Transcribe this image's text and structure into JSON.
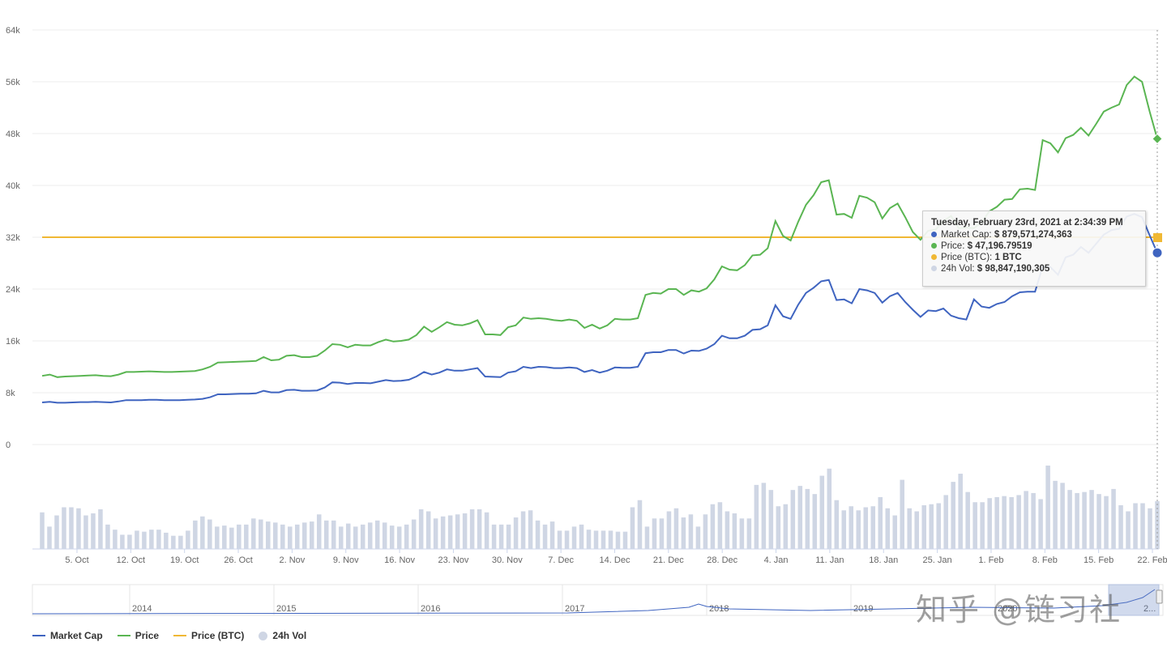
{
  "colors": {
    "market_cap": "#3f64c0",
    "price": "#5ab552",
    "price_btc": "#f0b834",
    "volume": "#cfd6e4",
    "grid": "#ececec"
  },
  "chart_data": {
    "type": "line",
    "title": "",
    "xlabel": "",
    "ylabel": "",
    "ylim": [
      0,
      64000
    ],
    "y_ticks": [
      "0",
      "8k",
      "16k",
      "24k",
      "32k",
      "40k",
      "48k",
      "56k",
      "64k"
    ],
    "x_ticks": [
      "5. Oct",
      "12. Oct",
      "19. Oct",
      "26. Oct",
      "2. Nov",
      "9. Nov",
      "16. Nov",
      "23. Nov",
      "30. Nov",
      "7. Dec",
      "14. Dec",
      "21. Dec",
      "28. Dec",
      "4. Jan",
      "11. Jan",
      "18. Jan",
      "25. Jan",
      "1. Feb",
      "8. Feb",
      "15. Feb",
      "22. Feb"
    ],
    "x_range_days": [
      0,
      141
    ],
    "series": [
      {
        "name": "Price",
        "values": [
          10600,
          10800,
          10400,
          10500,
          10550,
          10600,
          10650,
          10700,
          10600,
          10550,
          10800,
          11200,
          11200,
          11250,
          11300,
          11250,
          11200,
          11200,
          11250,
          11300,
          11350,
          11600,
          12000,
          12650,
          12700,
          12750,
          12800,
          12850,
          12900,
          13500,
          13000,
          13100,
          13700,
          13800,
          13500,
          13500,
          13700,
          14500,
          15500,
          15400,
          15000,
          15400,
          15300,
          15300,
          15800,
          16200,
          15900,
          16000,
          16200,
          16900,
          18200,
          17400,
          18100,
          18900,
          18500,
          18400,
          18700,
          19200,
          17000,
          17000,
          16900,
          18100,
          18400,
          19600,
          19400,
          19500,
          19400,
          19200,
          19100,
          19300,
          19100,
          18000,
          18500,
          17900,
          18400,
          19400,
          19300,
          19300,
          19500,
          23100,
          23400,
          23300,
          24000,
          24000,
          23100,
          23800,
          23600,
          24100,
          25500,
          27500,
          27000,
          26900,
          27700,
          29200,
          29300,
          30300,
          34500,
          32200,
          31500,
          34400,
          37000,
          38500,
          40500,
          40800,
          35500,
          35600,
          35000,
          38400,
          38100,
          37400,
          34900,
          36500,
          37200,
          35100,
          32800,
          31600,
          33000,
          33200,
          34500,
          35300,
          33400,
          33500,
          33400,
          34300,
          36000,
          36700,
          37800,
          37900,
          39400,
          39500,
          39300,
          47000,
          46500,
          45100,
          47300,
          47800,
          48900,
          47700,
          49500,
          51400,
          52000,
          52500,
          55500,
          56800,
          56000,
          51400,
          47196
        ]
      },
      {
        "name": "Market Cap",
        "values": [
          6500,
          6600,
          6450,
          6450,
          6500,
          6550,
          6550,
          6600,
          6550,
          6500,
          6650,
          6850,
          6850,
          6850,
          6900,
          6900,
          6850,
          6850,
          6850,
          6900,
          6950,
          7050,
          7300,
          7750,
          7750,
          7800,
          7850,
          7850,
          7900,
          8300,
          8050,
          8050,
          8400,
          8450,
          8300,
          8300,
          8350,
          8800,
          9600,
          9550,
          9350,
          9500,
          9500,
          9450,
          9700,
          9950,
          9800,
          9850,
          10000,
          10500,
          11200,
          10800,
          11100,
          11600,
          11400,
          11400,
          11600,
          11800,
          10500,
          10450,
          10400,
          11100,
          11300,
          12000,
          11800,
          12000,
          11950,
          11800,
          11800,
          11900,
          11800,
          11200,
          11500,
          11100,
          11400,
          11900,
          11850,
          11850,
          12000,
          14100,
          14250,
          14250,
          14600,
          14600,
          14050,
          14500,
          14450,
          14800,
          15500,
          16800,
          16400,
          16400,
          16800,
          17700,
          17800,
          18400,
          21500,
          19800,
          19400,
          21600,
          23400,
          24200,
          25200,
          25400,
          22300,
          22400,
          21800,
          24000,
          23800,
          23400,
          21900,
          22900,
          23400,
          22000,
          20800,
          19700,
          20700,
          20600,
          21000,
          19900,
          19500,
          19300,
          22400,
          21300,
          21100,
          21700,
          22000,
          22900,
          23500,
          23600,
          23600,
          27500,
          27400,
          26200,
          28900,
          29300,
          30500,
          29600,
          31000,
          32400,
          33100,
          33300,
          35200,
          35600,
          35100,
          32300,
          29600
        ]
      },
      {
        "name": "Price (BTC)",
        "constant": 32000
      },
      {
        "name": "24h Vol",
        "values": [
          36,
          22,
          33,
          41,
          41,
          40,
          33,
          35,
          39,
          24,
          19,
          14,
          14,
          18,
          17,
          19,
          19,
          16,
          13,
          13,
          18,
          28,
          32,
          29,
          22,
          23,
          21,
          24,
          24,
          30,
          29,
          27,
          26,
          24,
          22,
          24,
          26,
          27,
          34,
          28,
          28,
          22,
          25,
          22,
          24,
          26,
          28,
          26,
          23,
          22,
          24,
          29,
          39,
          37,
          30,
          32,
          33,
          34,
          35,
          39,
          39,
          36,
          24,
          24,
          24,
          31,
          37,
          38,
          28,
          24,
          27,
          18,
          18,
          22,
          24,
          19,
          18,
          18,
          18,
          17,
          17,
          41,
          48,
          22,
          30,
          30,
          37,
          40,
          31,
          34,
          22,
          34,
          44,
          46,
          37,
          35,
          30,
          30,
          63,
          65,
          58,
          42,
          44,
          58,
          62,
          59,
          54,
          72,
          79,
          48,
          38,
          42,
          38,
          41,
          42,
          51,
          40,
          33,
          68,
          40,
          37,
          43,
          44,
          45,
          53,
          66,
          74,
          56,
          46,
          46,
          50,
          51,
          52,
          51,
          53,
          57,
          55,
          49,
          82,
          67,
          65,
          58,
          55,
          56,
          58,
          54,
          52,
          59,
          43,
          37,
          45,
          45,
          40,
          47
        ]
      }
    ],
    "navigator_labels": [
      "2014",
      "2015",
      "2016",
      "2017",
      "2018",
      "2019",
      "2020",
      "2..."
    ]
  },
  "tooltip": {
    "title": "Tuesday, February 23rd, 2021 at 2:34:39 PM",
    "rows": [
      {
        "label": "Market Cap:",
        "value": "$ 879,571,274,363"
      },
      {
        "label": "Price:",
        "value": "$ 47,196.79519"
      },
      {
        "label": "Price (BTC):",
        "value": "1 BTC"
      },
      {
        "label": "24h Vol:",
        "value": "$ 98,847,190,305"
      }
    ]
  },
  "legend": {
    "items": [
      "Market Cap",
      "Price",
      "Price (BTC)",
      "24h Vol"
    ]
  },
  "watermark": "知乎 @链习社"
}
